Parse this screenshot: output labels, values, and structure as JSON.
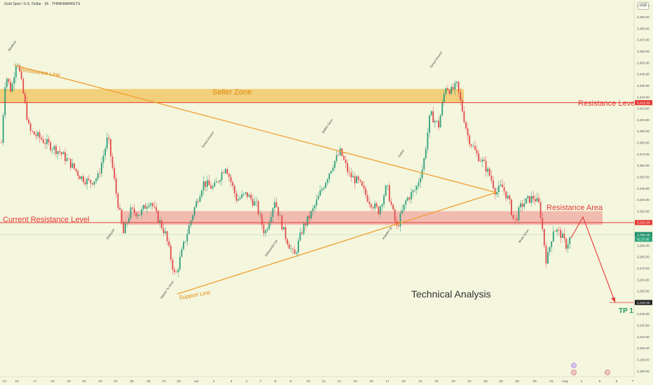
{
  "header": {
    "symbol_title": "Gold Spot / U.S. Dollar · 2h · THINKMARKETS",
    "currency_button": "USD"
  },
  "colors": {
    "background": "#f4f6de",
    "candle_up": "#2e9e7a",
    "candle_down": "#e24a4a",
    "trendline": "#f0a030",
    "zone_orange": "#f2c25a",
    "zone_red": "#f08a8a",
    "red_level": "#e53935",
    "current_price_label": "#1f8f6a"
  },
  "labels": {
    "seller_zone": "Seller Zone",
    "resistance_line": "Resistance Line",
    "resistance_level": "Resistance Level",
    "current_resistance_level": "Current Resistance Level",
    "resistance_area": "Resistance Area",
    "support_line": "Support Line",
    "technical_analysis": "Technical Analysis",
    "tp1": "TP 1"
  },
  "chart_data": {
    "type": "candlestick",
    "title": "Gold Spot / U.S. Dollar · 2h · THINKMARKETS",
    "ylim": [
      3175,
      3505
    ],
    "y_ticks": [
      3500,
      3490,
      3480,
      3470,
      3460,
      3450,
      3440,
      3430,
      3420,
      3410,
      3400,
      3390,
      3380,
      3370,
      3360,
      3350,
      3340,
      3330,
      3320,
      3310,
      3290,
      3280,
      3270,
      3260,
      3250,
      3240,
      3230,
      3220,
      3210,
      3200,
      3190,
      3180
    ],
    "x_ticks": [
      "13",
      "15",
      "17",
      "18",
      "19",
      "20",
      "23",
      "24",
      "25",
      "26",
      "27",
      "29",
      "Jul",
      "2",
      "3",
      "4",
      "7",
      "8",
      "9",
      "10",
      "11",
      "14",
      "15",
      "16",
      "17",
      "18",
      "21",
      "22",
      "23",
      "24",
      "25",
      "28",
      "29",
      "30",
      "31",
      "Aug",
      "4",
      "5",
      "6",
      "7"
    ],
    "price_tags": [
      {
        "price": 3415.0,
        "label": "3,415.00",
        "role": "resistance"
      },
      {
        "price": 3310.0,
        "label": "3,310.00",
        "role": "current-resistance"
      },
      {
        "price": 3299.49,
        "label": "3,299.49",
        "role": "last-price"
      },
      {
        "price": 3240.0,
        "label": "3,240.00",
        "role": "target"
      }
    ],
    "last_price_timer": "01:17:36",
    "levels": [
      {
        "label": "Resistance Level",
        "price": 3415
      },
      {
        "label": "Current Resistance Level",
        "price": 3310
      },
      {
        "label": "TP 1",
        "price": 3240
      }
    ],
    "zones": [
      {
        "label": "Seller Zone",
        "from": 3415,
        "to": 3427
      },
      {
        "label": "Resistance Area",
        "from": 3308,
        "to": 3320
      }
    ],
    "trendlines": [
      {
        "label": "Resistance Line",
        "from": [
          0.02,
          3452
        ],
        "to": [
          0.76,
          3342
        ]
      },
      {
        "label": "Support Line",
        "from": [
          0.27,
          3250
        ],
        "to": [
          0.76,
          3342
        ]
      }
    ],
    "projection": [
      [
        0.85,
        3303
      ],
      [
        0.895,
        3320
      ],
      [
        0.945,
        3240
      ]
    ],
    "annotations": [
      {
        "text": "Breakout",
        "x": 0.015,
        "price": 3460
      },
      {
        "text": "Rebound",
        "x": 0.17,
        "price": 3295
      },
      {
        "text": "Turned Around",
        "x": 0.32,
        "price": 3375
      },
      {
        "text": "Started To Grow",
        "x": 0.255,
        "price": 3243
      },
      {
        "text": "Rebounded Up",
        "x": 0.42,
        "price": 3280
      },
      {
        "text": "Bullish Gann",
        "x": 0.51,
        "price": 3388
      },
      {
        "text": "Exited",
        "x": 0.63,
        "price": 3367
      },
      {
        "text": "Turned Around",
        "x": 0.68,
        "price": 3445
      },
      {
        "text": "Impulse Up",
        "x": 0.605,
        "price": 3295
      },
      {
        "text": "Broke Down",
        "x": 0.82,
        "price": 3292
      }
    ]
  }
}
